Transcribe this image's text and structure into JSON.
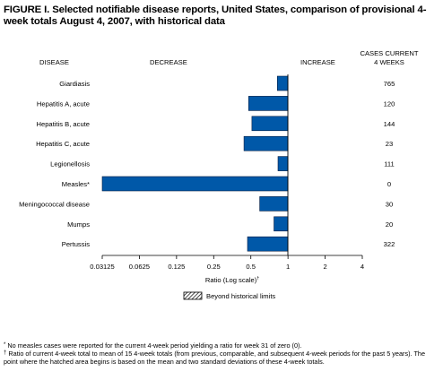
{
  "title": "FIGURE I. Selected notifiable disease reports, United States, comparison of provisional 4-week totals August 4, 2007, with historical data",
  "chart_data": {
    "type": "bar",
    "orientation": "horizontal",
    "x_scale": "log2",
    "xlim": [
      0.03125,
      4
    ],
    "xlabel": "Ratio (Log scale)",
    "xlabel_mark": "†",
    "x_ticks": [
      {
        "value": 0.03125,
        "label": "0.03125"
      },
      {
        "value": 0.0625,
        "label": "0.0625"
      },
      {
        "value": 0.125,
        "label": "0.125"
      },
      {
        "value": 0.25,
        "label": "0.25"
      },
      {
        "value": 0.5,
        "label": "0.5"
      },
      {
        "value": 1,
        "label": "1"
      },
      {
        "value": 2,
        "label": "2"
      },
      {
        "value": 4,
        "label": "4"
      }
    ],
    "column_headers": {
      "disease": "DISEASE",
      "decrease": "DECREASE",
      "increase": "INCREASE",
      "cases_line1": "CASES CURRENT",
      "cases_line2": "4 WEEKS"
    },
    "categories": [
      "Giardiasis",
      "Hepatitis A, acute",
      "Hepatitis B, acute",
      "Hepatitis C, acute",
      "Legionellosis",
      "Measles*",
      "Meningococcal disease",
      "Mumps",
      "Pertussis"
    ],
    "values": [
      0.82,
      0.48,
      0.51,
      0.44,
      0.83,
      0.03125,
      0.59,
      0.77,
      0.47
    ],
    "cases_current": [
      "765",
      "120",
      "144",
      "23",
      "111",
      "0",
      "30",
      "20",
      "322"
    ],
    "bar_color": "#0058a8",
    "legend": {
      "label": "Beyond historical limits",
      "pattern": "hatched"
    }
  },
  "footnotes": [
    {
      "mark": "*",
      "text": "No measles cases were reported for the current 4-week period yielding a ratio for week 31 of zero (0)."
    },
    {
      "mark": "†",
      "text": "Ratio of current 4-week total to mean of 15 4-week totals (from previous, comparable, and subsequent 4-week periods for the past 5 years). The point where the hatched area begins is based on the mean and two standard deviations of these 4-week totals."
    }
  ]
}
